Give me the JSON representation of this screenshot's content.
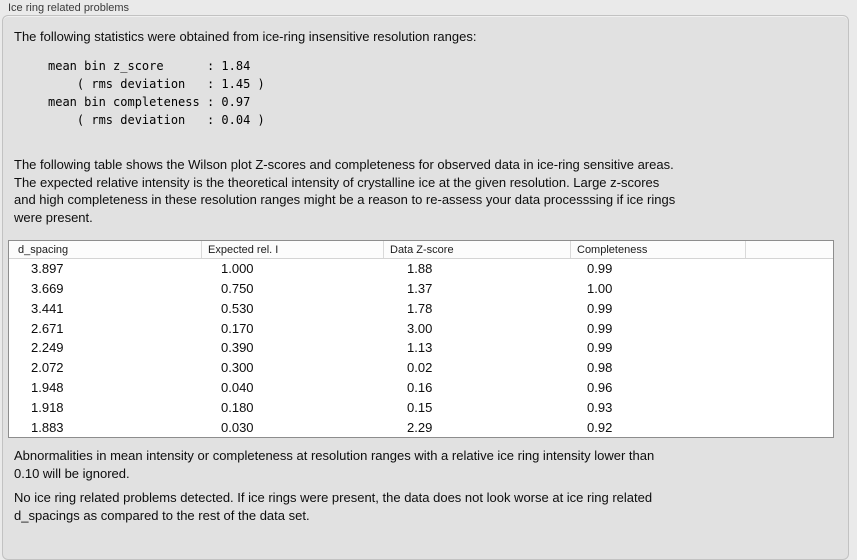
{
  "panel": {
    "title": "Ice ring related problems"
  },
  "intro": {
    "text": "The following statistics were obtained from ice-ring insensitive resolution ranges:"
  },
  "stats": {
    "block": "mean bin z_score      : 1.84\n    ( rms deviation   : 1.45 )\nmean bin completeness : 0.97\n    ( rms deviation   : 0.04 )",
    "mean_bin_z_score": "1.84",
    "z_score_rms_deviation": "1.45",
    "mean_bin_completeness": "0.97",
    "completeness_rms_deviation": "0.04"
  },
  "table_description": {
    "text": "The following table shows the Wilson plot Z-scores and completeness for observed data in ice-ring sensitive areas.\nThe expected relative intensity is the theoretical intensity of crystalline ice at the given resolution. Large z-scores\nand high completeness in these resolution ranges might be a reason to re-assess your data processsing if ice rings\nwere present."
  },
  "table": {
    "columns": [
      "d_spacing",
      "Expected rel. I",
      "Data Z-score",
      "Completeness",
      ""
    ],
    "rows": [
      [
        "3.897",
        "1.000",
        "1.88",
        "0.99"
      ],
      [
        "3.669",
        "0.750",
        "1.37",
        "1.00"
      ],
      [
        "3.441",
        "0.530",
        "1.78",
        "0.99"
      ],
      [
        "2.671",
        "0.170",
        "3.00",
        "0.99"
      ],
      [
        "2.249",
        "0.390",
        "1.13",
        "0.99"
      ],
      [
        "2.072",
        "0.300",
        "0.02",
        "0.98"
      ],
      [
        "1.948",
        "0.040",
        "0.16",
        "0.96"
      ],
      [
        "1.918",
        "0.180",
        "0.15",
        "0.93"
      ],
      [
        "1.883",
        "0.030",
        "2.29",
        "0.92"
      ]
    ]
  },
  "notes": {
    "ignore_note": "Abnormalities in mean intensity or completeness at resolution ranges with a relative ice ring intensity lower than\n0.10 will be ignored.",
    "conclusion": "No ice ring related problems detected. If ice rings were present, the data does not look worse at ice ring related\nd_spacings as compared to the rest of the data set."
  },
  "colors": {
    "window_background": "#eaeaea",
    "panel_background": "#e1e1e1",
    "panel_border": "#c2c2c2",
    "table_border": "#8d8d8d",
    "table_background": "#ffffff",
    "text": "#0d0d0d"
  }
}
